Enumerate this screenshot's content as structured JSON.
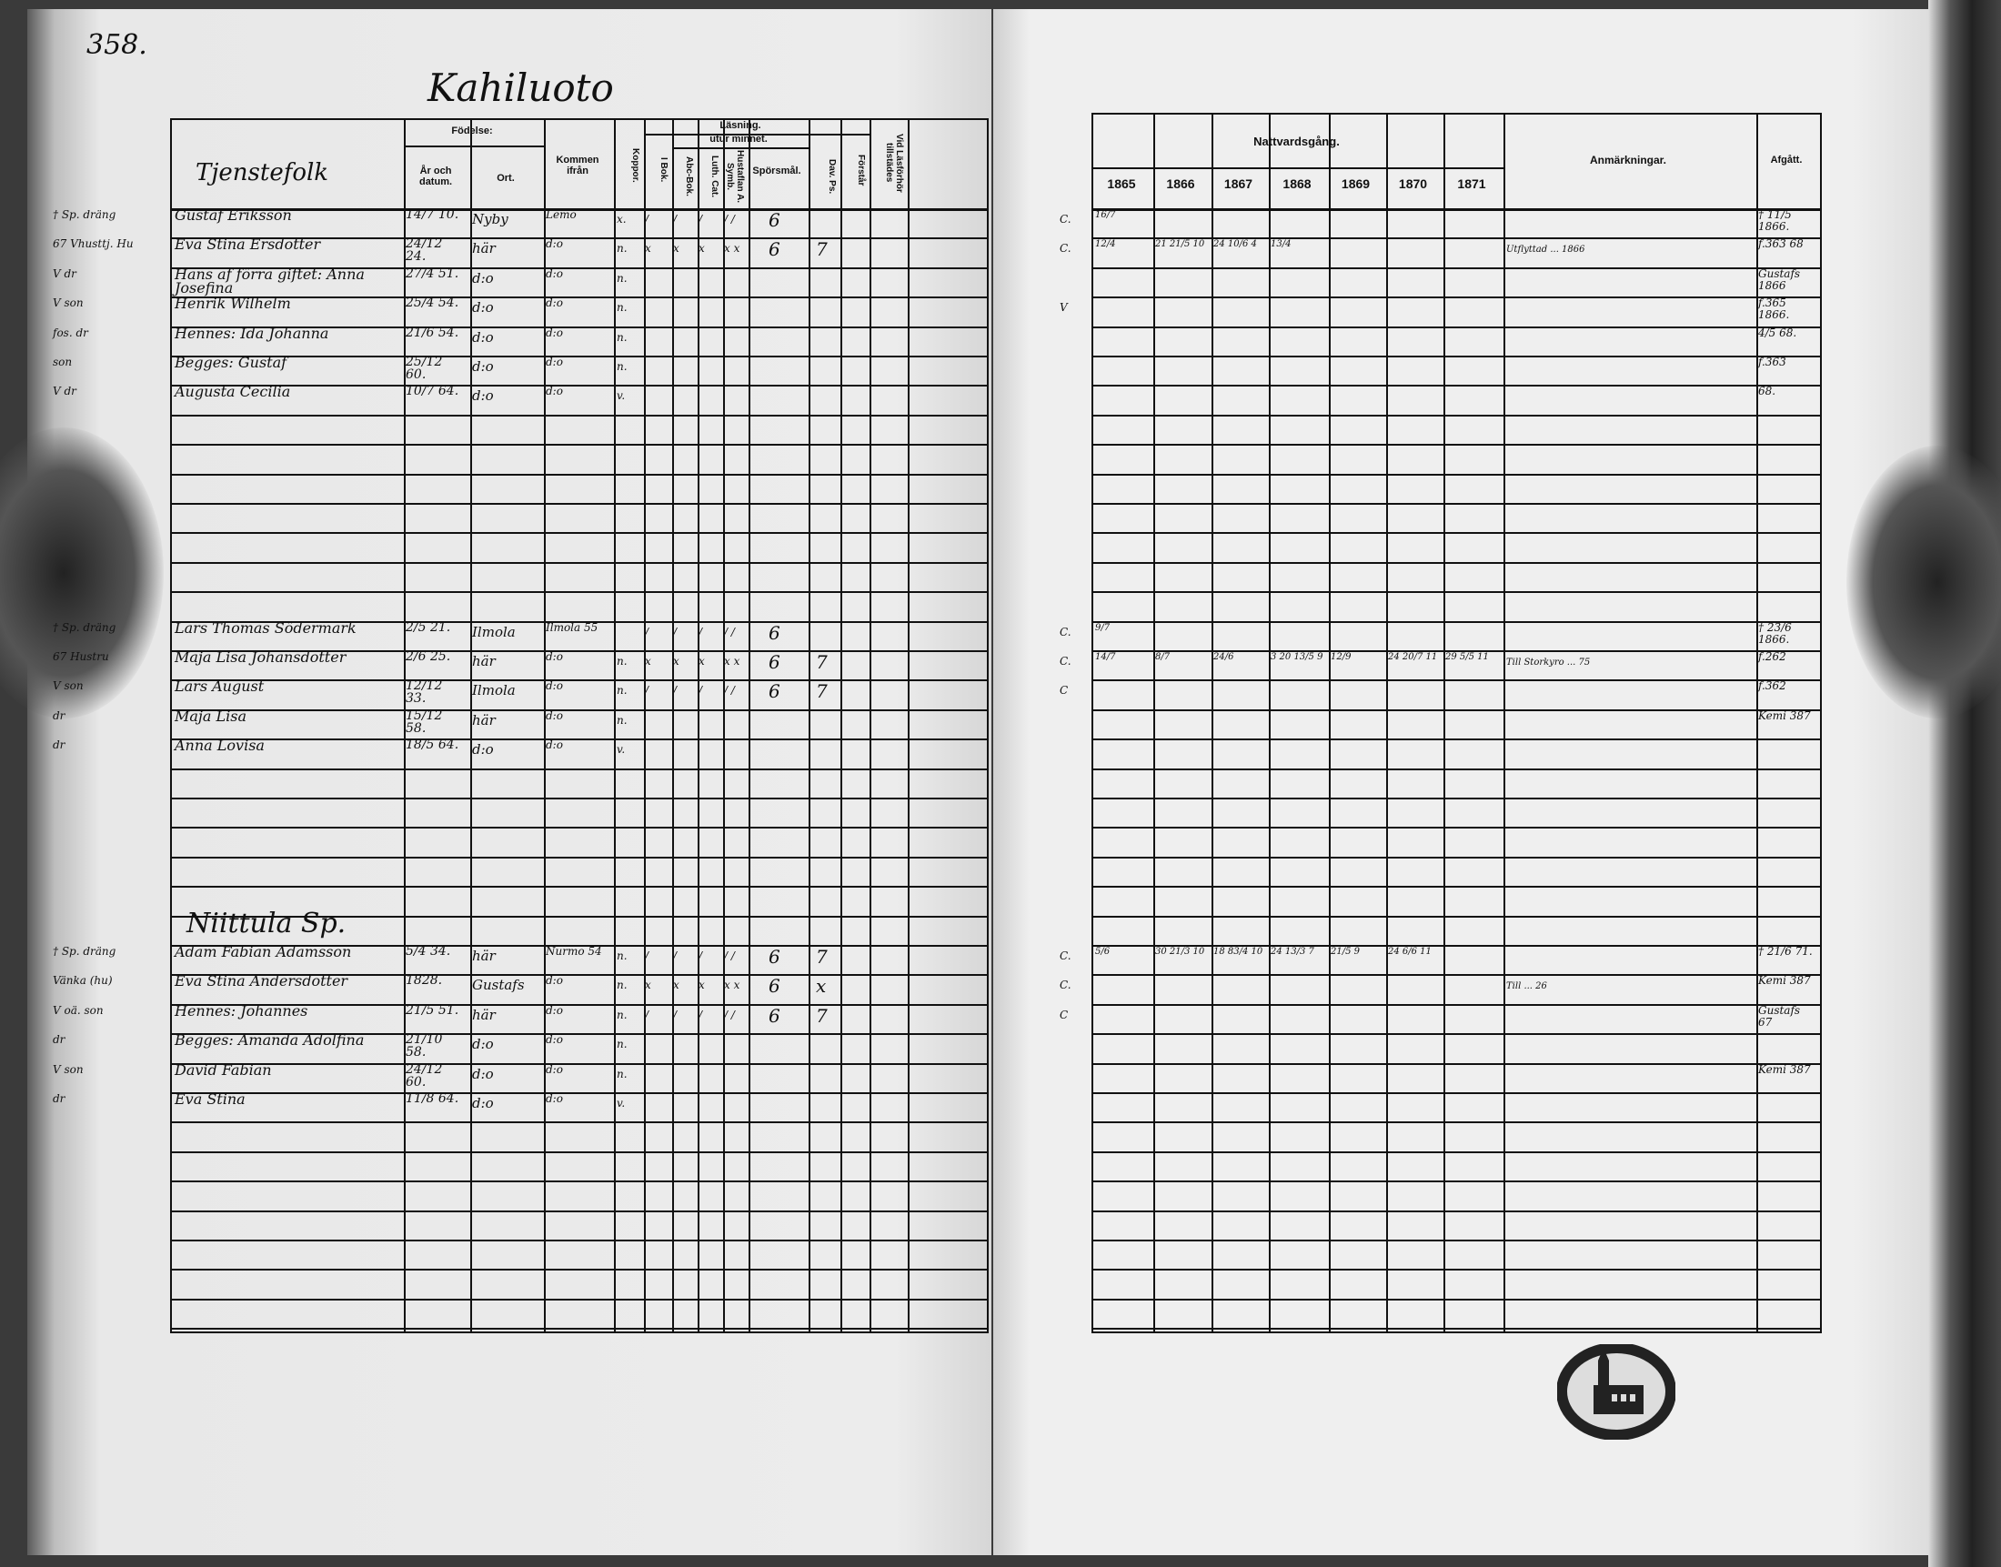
{
  "page_number": "358.",
  "village": "Kahiluoto",
  "left_header": {
    "section": "Tjenstefolk",
    "birth_group": "Födelse:",
    "birth_year": "År och datum.",
    "birth_place": "Ort.",
    "came_from": "Kommen ifrån",
    "smallpox": "Koppor.",
    "reading_group": "Läsning.",
    "by_heart": "utur minnet.",
    "book": "I Bok.",
    "abc": "Abc-Bok.",
    "catechism": "Luth. Cat.",
    "hustaflan": "Hustaflan A. Symb.",
    "questions": "Spörsmål.",
    "psalms": "Dav. Ps.",
    "understands": "Förstår",
    "exam": "Vid Läsförhör tillstädes"
  },
  "right_header": {
    "communion": "Nattvardsgång.",
    "years": [
      "1865",
      "1866",
      "1867",
      "1868",
      "1869",
      "1870",
      "1871"
    ],
    "remarks": "Anmärkningar.",
    "departed": "Afgått."
  },
  "subheading": "Niittula Sp.",
  "rows": [
    {
      "row": 0,
      "note": "† Sp. dräng",
      "name": "Gustaf Eriksson",
      "born": "14/7 10.",
      "place": "Nyby",
      "from": "Lemo",
      "kop": "x.",
      "read": [
        "/",
        "/",
        "/",
        "/ /"
      ],
      "sp": "6",
      "c": "C.",
      "y": [
        "16/7"
      ],
      "rem": "",
      "afg": "† 11/5 1866."
    },
    {
      "row": 1,
      "note": "67 Vhusttj. Hu",
      "name": "Eva Stina Ersdotter",
      "born": "24/12 24.",
      "place": "här",
      "from": "d:o",
      "kop": "n.",
      "read": [
        "x",
        "x",
        "x",
        "x x"
      ],
      "sp": "6",
      "dp": "7",
      "c": "C.",
      "y": [
        "12/4",
        "21 21/5 10",
        "24 10/6 4",
        "13/4"
      ],
      "rem": "Utflyttad ... 1866",
      "afg": "f.363 68"
    },
    {
      "row": 2,
      "note": "V dr",
      "name": "Hans af förra giftet: Anna Josefina",
      "born": "27/4 51.",
      "place": "d:o",
      "from": "d:o",
      "kop": "n.",
      "afg": "Gustafs 1866"
    },
    {
      "row": 3,
      "note": "V son",
      "name": "Henrik Wilhelm",
      "born": "25/4 54.",
      "place": "d:o",
      "from": "d:o",
      "kop": "n.",
      "c": "V",
      "afg": "f.365 1866."
    },
    {
      "row": 4,
      "note": "fos. dr",
      "name": "Hennes: Ida Johanna",
      "born": "21/6 54.",
      "place": "d:o",
      "from": "d:o",
      "kop": "n.",
      "afg": "4/5 68."
    },
    {
      "row": 5,
      "note": "son",
      "name": "Begges: Gustaf",
      "born": "25/12 60.",
      "place": "d:o",
      "from": "d:o",
      "kop": "n.",
      "afg": "f.363"
    },
    {
      "row": 6,
      "note": "V dr",
      "name": "Augusta Cecilia",
      "born": "10/7 64.",
      "place": "d:o",
      "from": "d:o",
      "kop": "v.",
      "afg": "68."
    },
    {
      "row": 14,
      "note": "† Sp. dräng",
      "name": "Lars Thomas Södermark",
      "born": "2/5 21.",
      "place": "Ilmola",
      "from": "Ilmola 55",
      "kop": "",
      "read": [
        "/",
        "/",
        "/",
        "/ /"
      ],
      "sp": "6",
      "c": "C.",
      "y": [
        "9/7"
      ],
      "afg": "† 23/6 1866."
    },
    {
      "row": 15,
      "note": "67 Hustru",
      "name": "Maja Lisa Johansdotter",
      "born": "2/6 25.",
      "place": "här",
      "from": "d:o",
      "kop": "n.",
      "read": [
        "x",
        "x",
        "x",
        "x x"
      ],
      "sp": "6",
      "dp": "7",
      "c": "C.",
      "y": [
        "14/7",
        "8/7",
        "24/6",
        "3 20 13/5 9",
        "12/9",
        "24 20/7 11",
        "29 5/5 11"
      ],
      "rem": "Till Storkyro ... 75",
      "afg": "f.262"
    },
    {
      "row": 16,
      "note": "V son",
      "name": "Lars August",
      "born": "12/12 33.",
      "place": "Ilmola",
      "from": "d:o",
      "kop": "n.",
      "read": [
        "/",
        "/",
        "/",
        "/ /"
      ],
      "sp": "6",
      "dp": "7",
      "c": "C",
      "afg": "f.362"
    },
    {
      "row": 17,
      "note": "dr",
      "name": "Maja Lisa",
      "born": "15/12 58.",
      "place": "här",
      "from": "d:o",
      "kop": "n.",
      "afg": "Kemi 387"
    },
    {
      "row": 18,
      "note": "dr",
      "name": "Anna Lovisa",
      "born": "18/5 64.",
      "place": "d:o",
      "from": "d:o",
      "kop": "v."
    },
    {
      "row": 25,
      "note": "† Sp. dräng",
      "name": "Adam Fabian Adamsson",
      "born": "5/4 34.",
      "place": "här",
      "from": "Nurmo 54",
      "kop": "n.",
      "read": [
        "/",
        "/",
        "/",
        "/ /"
      ],
      "sp": "6",
      "dp": "7",
      "c": "C.",
      "y": [
        "5/6",
        "30 21/3 10",
        "18 83/4 10",
        "24 13/3 7",
        "21/5 9",
        "24 6/6 11"
      ],
      "afg": "† 21/6 71."
    },
    {
      "row": 26,
      "note": "Vänka (hu)",
      "name": "Eva Stina Andersdotter",
      "born": "1828.",
      "place": "Gustafs",
      "from": "d:o",
      "kop": "n.",
      "read": [
        "x",
        "x",
        "x",
        "x x"
      ],
      "sp": "6",
      "dp": "x",
      "c": "C.",
      "rem": "Till ... 26",
      "afg": "Kemi 387"
    },
    {
      "row": 27,
      "note": "V oä. son",
      "name": "Hennes: Johannes",
      "born": "21/5 51.",
      "place": "här",
      "from": "d:o",
      "kop": "n.",
      "read": [
        "/",
        "/",
        "/",
        "/ /"
      ],
      "sp": "6",
      "dp": "7",
      "c": "C",
      "afg": "Gustafs 67"
    },
    {
      "row": 28,
      "note": "dr",
      "name": "Begges: Amanda Adolfina",
      "born": "21/10 58.",
      "place": "d:o",
      "from": "d:o",
      "kop": "n."
    },
    {
      "row": 29,
      "note": "V son",
      "name": "David Fabian",
      "born": "24/12 60.",
      "place": "d:o",
      "from": "d:o",
      "kop": "n.",
      "afg": "Kemi 387"
    },
    {
      "row": 30,
      "note": "dr",
      "name": "Eva Stina",
      "born": "11/8 64.",
      "place": "d:o",
      "from": "d:o",
      "kop": "v."
    }
  ],
  "stamp_text": "Diocesan archive stamp"
}
